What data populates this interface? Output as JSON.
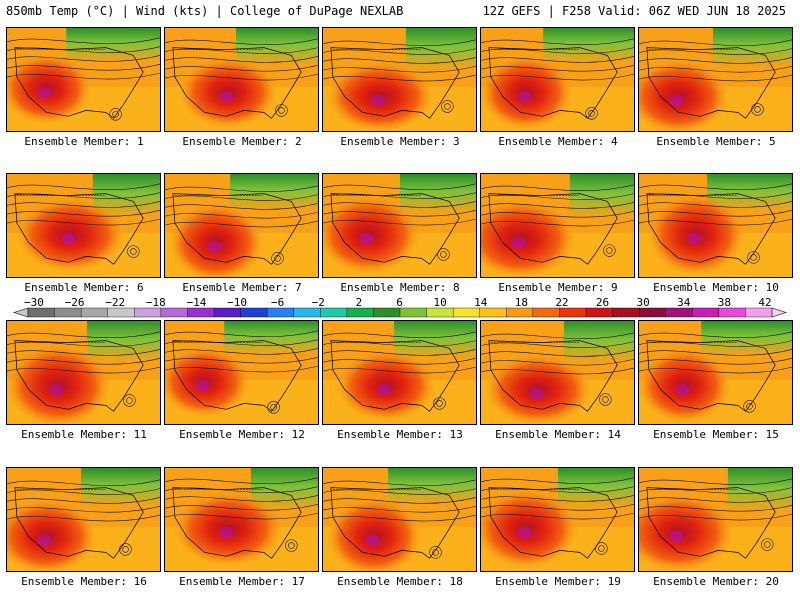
{
  "header": {
    "left": "850mb Temp (°C) | Wind (kts) | College of DuPage NEXLAB",
    "right": "12Z GEFS | F258 Valid: 06Z WED JUN 18 2025"
  },
  "colorbar": {
    "ticks": [
      "−30",
      "−26",
      "−22",
      "−18",
      "−14",
      "−10",
      "−6",
      "−2",
      "2",
      "6",
      "10",
      "14",
      "18",
      "22",
      "26",
      "30",
      "34",
      "38",
      "42"
    ],
    "colors": [
      "#6e6e6e",
      "#8c8c8c",
      "#a8a8a8",
      "#c8c8c8",
      "#c9a0e0",
      "#b36ad8",
      "#9a2ed0",
      "#5a1ec8",
      "#1f3fd8",
      "#2a7ff0",
      "#29b6e8",
      "#21c9a8",
      "#17b04a",
      "#2e8f2a",
      "#7fc23a",
      "#c9e33a",
      "#f5e12e",
      "#fbc01e",
      "#f89a16",
      "#f26a10",
      "#e8360e",
      "#cf1414",
      "#a80f1e",
      "#8a0f3c",
      "#a0147a",
      "#c81eb4",
      "#e84ad8",
      "#f2a0ec"
    ]
  },
  "members": [
    {
      "label": "Ensemble Member: 1"
    },
    {
      "label": "Ensemble Member: 2"
    },
    {
      "label": "Ensemble Member: 3"
    },
    {
      "label": "Ensemble Member: 4"
    },
    {
      "label": "Ensemble Member: 5"
    },
    {
      "label": "Ensemble Member: 6"
    },
    {
      "label": "Ensemble Member: 7"
    },
    {
      "label": "Ensemble Member: 8"
    },
    {
      "label": "Ensemble Member: 9"
    },
    {
      "label": "Ensemble Member: 10"
    },
    {
      "label": "Ensemble Member: 11"
    },
    {
      "label": "Ensemble Member: 12"
    },
    {
      "label": "Ensemble Member: 13"
    },
    {
      "label": "Ensemble Member: 14"
    },
    {
      "label": "Ensemble Member: 15"
    },
    {
      "label": "Ensemble Member: 16"
    },
    {
      "label": "Ensemble Member: 17"
    },
    {
      "label": "Ensemble Member: 18"
    },
    {
      "label": "Ensemble Member: 19"
    },
    {
      "label": "Ensemble Member: 20"
    }
  ]
}
